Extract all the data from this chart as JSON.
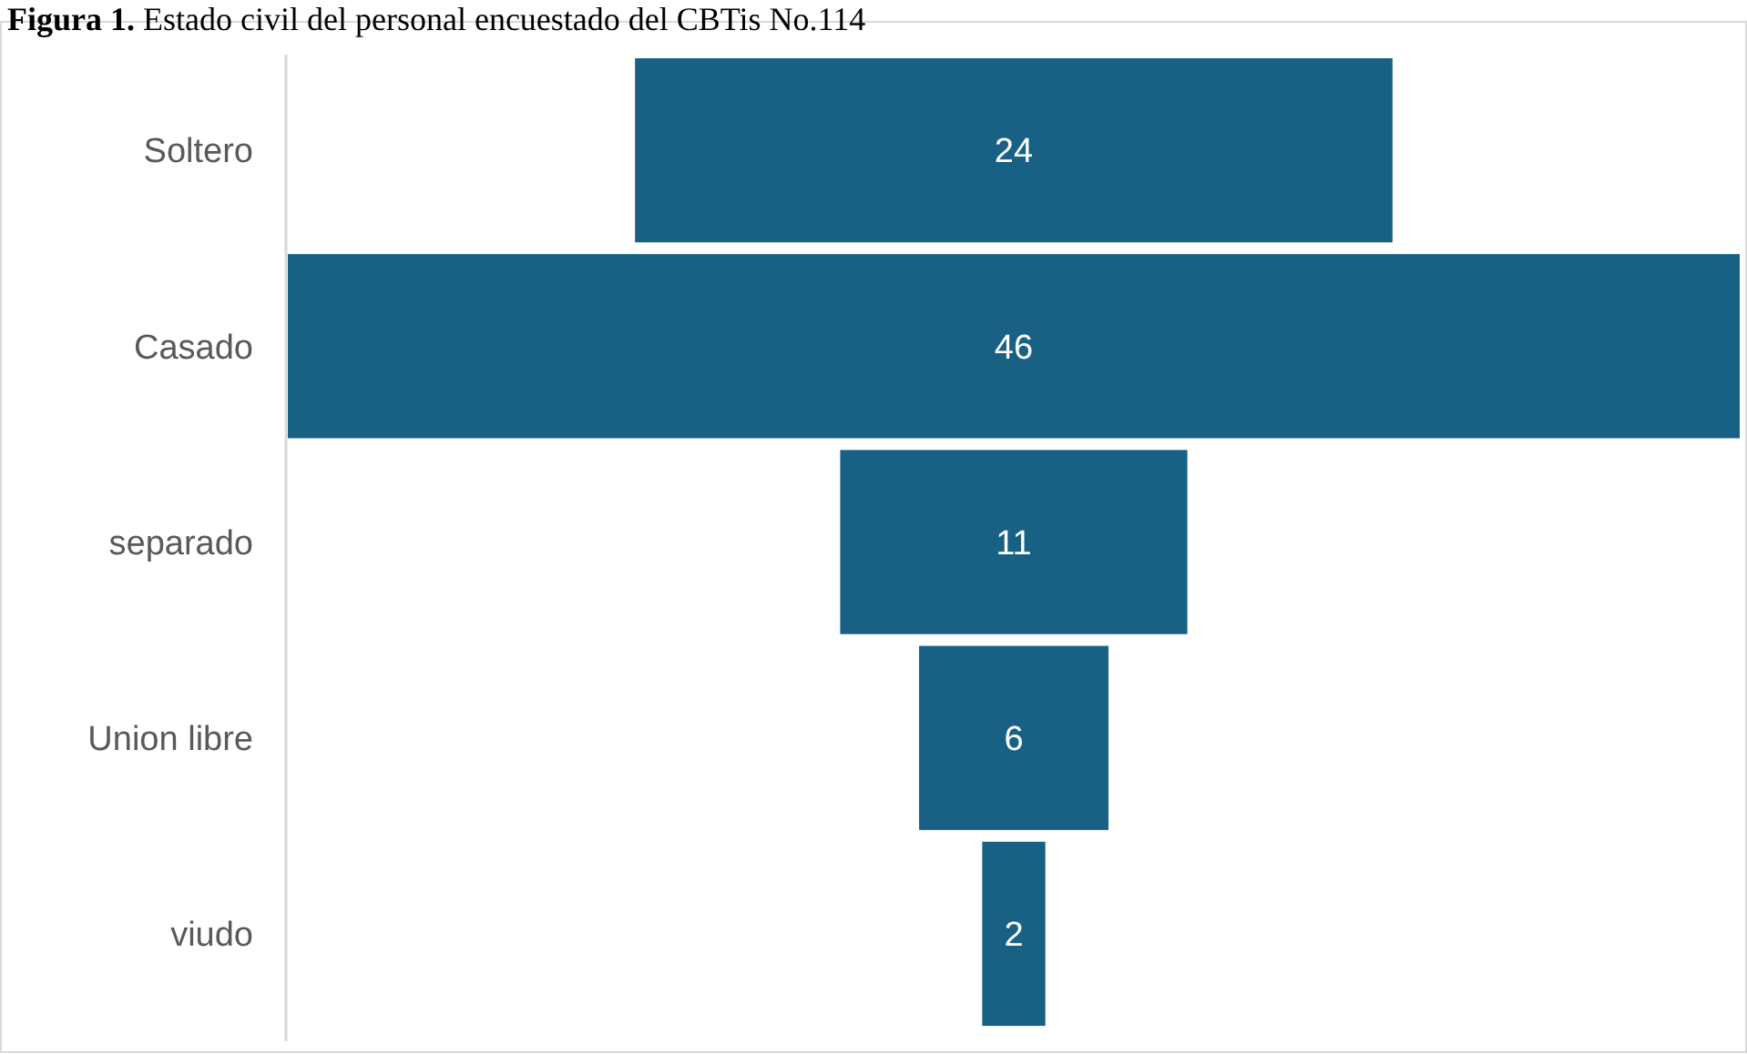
{
  "chart_data": {
    "type": "other",
    "title": "Figura 1. Estado civil del personal encuestado del CBTis No.114",
    "categories": [
      "Soltero",
      "Casado",
      "separado",
      "Union libre",
      "viudo"
    ],
    "values": [
      24,
      46,
      11,
      6,
      2
    ],
    "color": "#186184",
    "data_labels": true
  }
}
